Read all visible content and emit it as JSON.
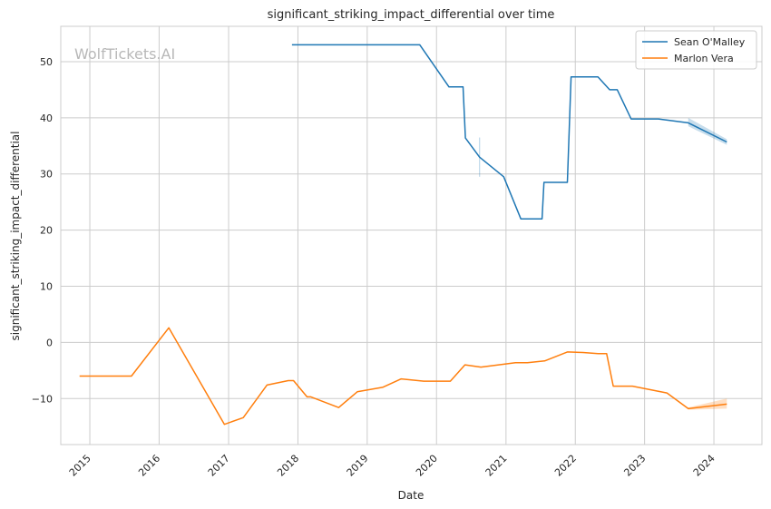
{
  "chart_data": {
    "type": "line",
    "title": "significant_striking_impact_differential over time",
    "xlabel": "Date",
    "ylabel": "significant_striking_impact_differential",
    "watermark": "WolfTickets.AI",
    "xlim": [
      "2014-08-01",
      "2024-09-10"
    ],
    "ylim": [
      -18.2,
      56.3
    ],
    "x_ticks": [
      "2015",
      "2016",
      "2017",
      "2018",
      "2019",
      "2020",
      "2021",
      "2022",
      "2023",
      "2024"
    ],
    "y_ticks": [
      -10,
      0,
      10,
      20,
      30,
      40,
      50
    ],
    "grid": true,
    "legend_position": "top-right",
    "series": [
      {
        "name": "Sean O'Malley",
        "color": "#1f77b4",
        "points": [
          [
            "2017-12-01",
            53.0
          ],
          [
            "2019-10-05",
            53.0
          ],
          [
            "2020-03-07",
            45.5
          ],
          [
            "2020-05-20",
            45.5
          ],
          [
            "2020-06-01",
            36.4
          ],
          [
            "2020-08-15",
            33.0
          ],
          [
            "2020-12-20",
            29.5
          ],
          [
            "2021-03-20",
            22.0
          ],
          [
            "2021-07-10",
            22.0
          ],
          [
            "2021-07-20",
            28.5
          ],
          [
            "2021-11-20",
            28.5
          ],
          [
            "2021-12-10",
            47.3
          ],
          [
            "2022-04-30",
            47.3
          ],
          [
            "2022-07-01",
            45.0
          ],
          [
            "2022-08-10",
            45.0
          ],
          [
            "2022-10-22",
            39.8
          ],
          [
            "2023-03-15",
            39.8
          ],
          [
            "2023-08-19",
            39.1
          ],
          [
            "2024-03-09",
            35.7
          ]
        ]
      },
      {
        "name": "Marlon Vera",
        "color": "#ff7f0e",
        "points": [
          [
            "2014-11-08",
            -6.0
          ],
          [
            "2015-08-08",
            -6.0
          ],
          [
            "2016-02-21",
            2.6
          ],
          [
            "2016-12-10",
            -14.6
          ],
          [
            "2017-03-19",
            -13.4
          ],
          [
            "2017-07-22",
            -7.6
          ],
          [
            "2017-11-11",
            -6.8
          ],
          [
            "2017-12-09",
            -6.8
          ],
          [
            "2018-02-18",
            -9.7
          ],
          [
            "2018-03-10",
            -9.7
          ],
          [
            "2018-08-04",
            -11.6
          ],
          [
            "2018-11-10",
            -8.8
          ],
          [
            "2019-03-23",
            -8.0
          ],
          [
            "2019-06-29",
            -6.5
          ],
          [
            "2019-10-26",
            -6.9
          ],
          [
            "2020-03-14",
            -6.9
          ],
          [
            "2020-05-30",
            -4.0
          ],
          [
            "2020-08-22",
            -4.4
          ],
          [
            "2021-02-20",
            -3.6
          ],
          [
            "2021-04-24",
            -3.6
          ],
          [
            "2021-07-24",
            -3.3
          ],
          [
            "2021-11-20",
            -1.7
          ],
          [
            "2022-02-10",
            -1.8
          ],
          [
            "2022-05-01",
            -2.0
          ],
          [
            "2022-06-15",
            -2.0
          ],
          [
            "2022-07-20",
            -7.8
          ],
          [
            "2022-10-29",
            -7.8
          ],
          [
            "2023-04-29",
            -9.0
          ],
          [
            "2023-08-19",
            -11.8
          ],
          [
            "2024-03-09",
            -11.0
          ]
        ]
      }
    ]
  }
}
